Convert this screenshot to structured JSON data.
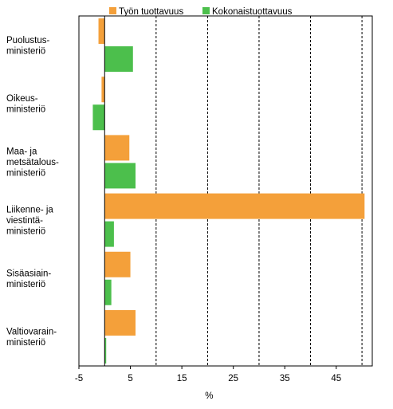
{
  "chart_data": {
    "type": "bar",
    "orientation": "horizontal",
    "categories": [
      [
        "Puolustus-",
        "ministeriö"
      ],
      [
        "Oikeus-",
        "ministeriö"
      ],
      [
        "Maa- ja",
        "metsätalous-",
        "ministeriö"
      ],
      [
        "Liikenne- ja",
        "viestintä-",
        "ministeriö"
      ],
      [
        "Sisäasiain-",
        "ministeriö"
      ],
      [
        "Valtiovarain-",
        "ministeriö"
      ]
    ],
    "series": [
      {
        "name": "Työn tuottavuus",
        "color": "#f4a03a",
        "values": [
          -1.2,
          -0.6,
          4.8,
          50.5,
          5.0,
          6.0
        ]
      },
      {
        "name": "Kokonaistuottavuus",
        "color": "#4cbf4c",
        "values": [
          5.5,
          -2.3,
          6.0,
          1.8,
          1.3,
          0.3
        ]
      }
    ],
    "xlim": [
      -5,
      52
    ],
    "xticks": [
      -5,
      5,
      15,
      25,
      35,
      45
    ],
    "xlabel": "%",
    "gridlines_dashed": [
      10,
      20,
      30,
      40,
      50
    ],
    "legend_position": "top"
  }
}
